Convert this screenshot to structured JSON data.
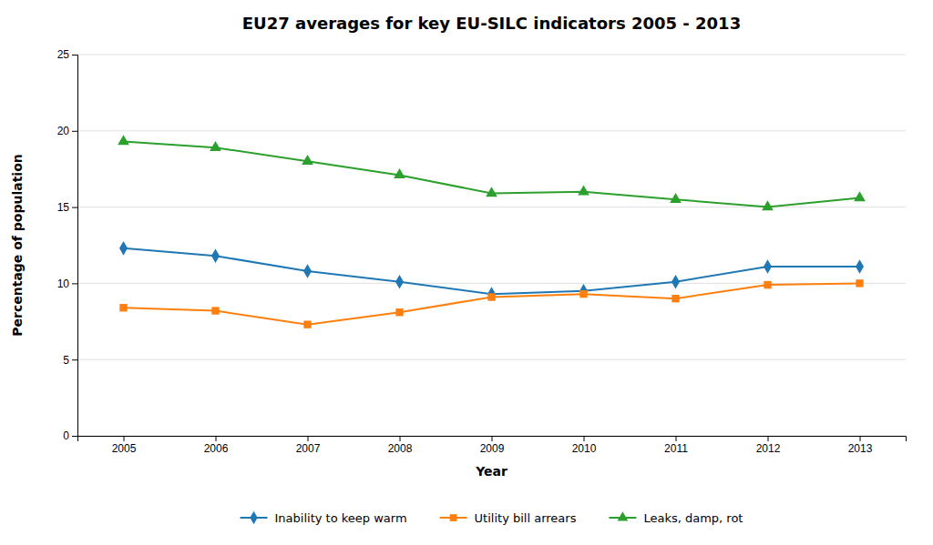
{
  "chart_data": {
    "type": "line",
    "title": "EU27 averages for key EU-SILC indicators 2005 - 2013",
    "xlabel": "Year",
    "ylabel": "Percentage of population",
    "x": [
      2005,
      2006,
      2007,
      2008,
      2009,
      2010,
      2011,
      2012,
      2013
    ],
    "series": [
      {
        "name": "Inability to keep warm",
        "marker": "diamond",
        "values": [
          12.3,
          11.8,
          10.8,
          10.1,
          9.3,
          9.5,
          10.1,
          11.1,
          11.1
        ]
      },
      {
        "name": "Utility bill arrears",
        "marker": "square",
        "values": [
          8.4,
          8.2,
          7.3,
          8.1,
          9.1,
          9.3,
          9.0,
          9.9,
          10.0
        ]
      },
      {
        "name": "Leaks, damp, rot",
        "marker": "triangle",
        "values": [
          19.3,
          18.9,
          18.0,
          17.1,
          15.9,
          16.0,
          15.5,
          15.0,
          15.6
        ]
      }
    ],
    "xlim": [
      2004.5,
      2013.5
    ],
    "xticks": [
      2005,
      2006,
      2007,
      2008,
      2009,
      2010,
      2011,
      2012,
      2013
    ],
    "ylim": [
      0,
      25
    ],
    "yticks": [
      0,
      5,
      10,
      15,
      20,
      25
    ],
    "grid": true,
    "legend": "bottom"
  }
}
